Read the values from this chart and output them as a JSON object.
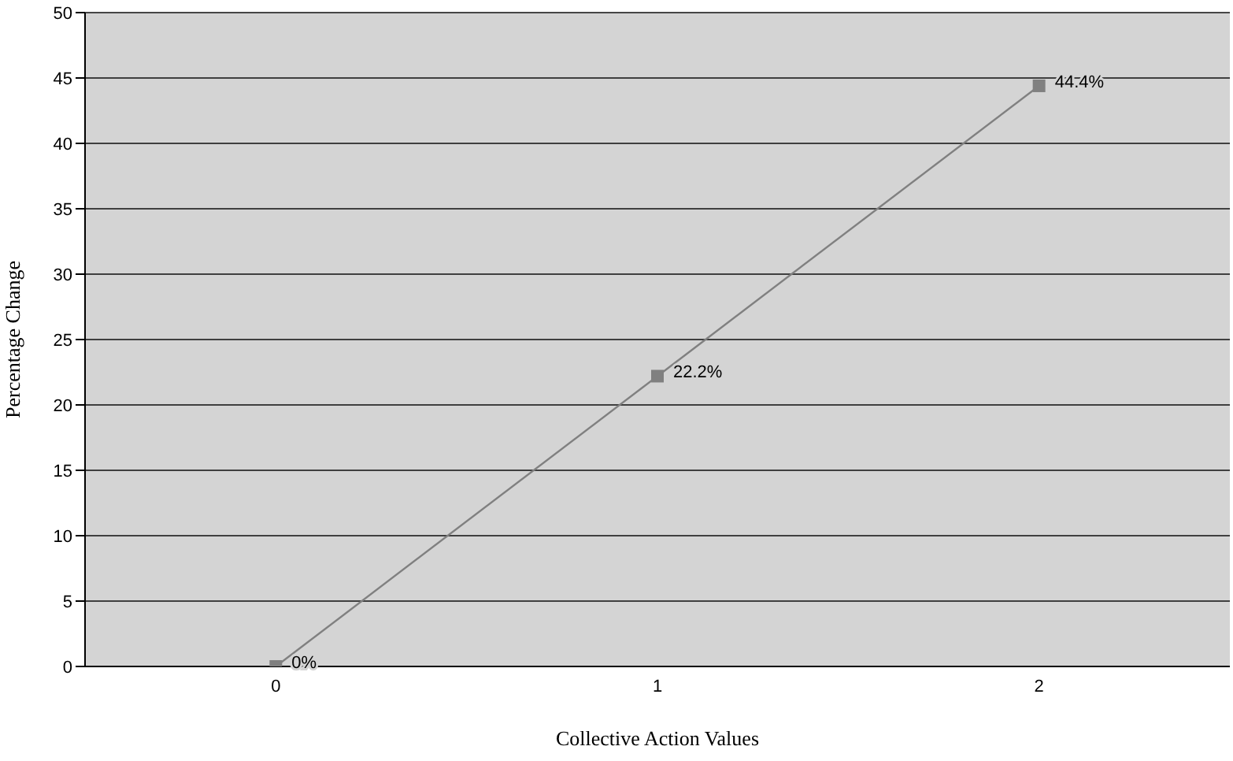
{
  "chart_data": {
    "type": "line",
    "xlabel": "Collective Action Values",
    "ylabel": "Percentage Change",
    "categories": [
      "0",
      "1",
      "2"
    ],
    "series": [
      {
        "color": "#808080",
        "values": [
          0,
          22.2,
          44.4
        ],
        "value_labels": [
          "0%",
          "22.2%",
          "44.4%"
        ]
      }
    ],
    "ylim": [
      0,
      50
    ],
    "yticks": [
      0,
      5,
      10,
      15,
      20,
      25,
      30,
      35,
      40,
      45,
      50
    ],
    "grid": "y",
    "legend": false,
    "marker": "square",
    "line_style": "solid"
  }
}
